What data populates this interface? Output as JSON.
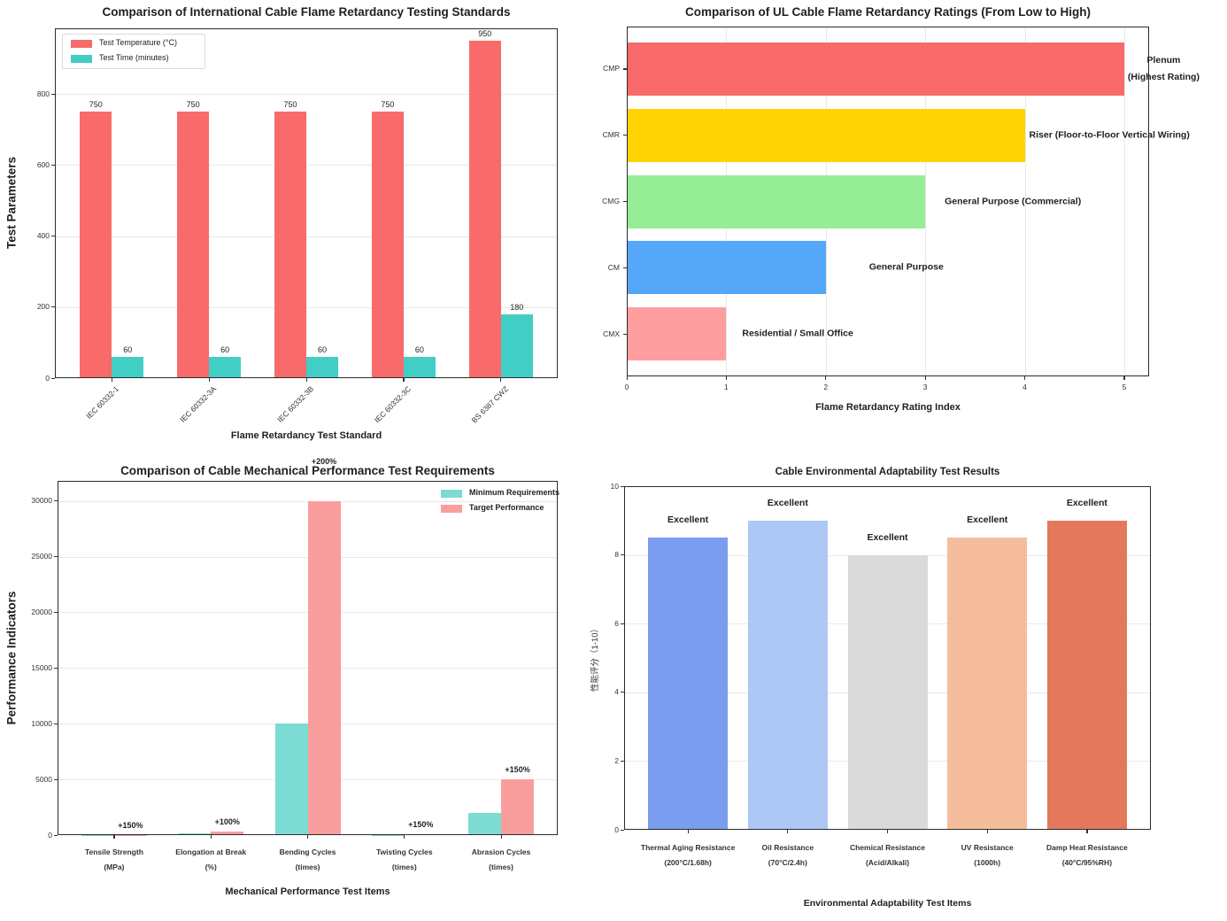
{
  "figure": {
    "background": "#ffffff",
    "spine_color": "#2b2b2b",
    "grid_color": "#e9e9e9",
    "tick_color": "#333333"
  },
  "chart_data": [
    {
      "id": "flame-test-standards",
      "type": "bar",
      "title": "Comparison of International Cable Flame Retardancy Testing Standards",
      "xlabel": "Flame Retardancy Test Standard",
      "ylabel": "Test Parameters",
      "categories": [
        "IEC 60332-1",
        "IEC 60332-3A",
        "IEC 60332-3B",
        "IEC 60332-3C",
        "BS 6387 CWZ"
      ],
      "series": [
        {
          "name": "Test Temperature (°C)",
          "color": "#f96a6a",
          "values": [
            750,
            750,
            750,
            750,
            950
          ]
        },
        {
          "name": "Test Time (minutes)",
          "color": "#41cec5",
          "values": [
            60,
            60,
            60,
            60,
            180
          ]
        }
      ],
      "bar_value_labels": true,
      "ylim": [
        0,
        985
      ],
      "yticks": [
        0,
        200,
        400,
        600,
        800
      ],
      "grid": "horizontal",
      "legend_position": "upper left"
    },
    {
      "id": "ul-flame-ratings",
      "type": "bar-horizontal",
      "title": "Comparison of UL Cable Flame Retardancy Ratings (From Low to High)",
      "xlabel": "Flame Retardancy Rating Index",
      "categories": [
        "CMP",
        "CMR",
        "CMG",
        "CM",
        "CMX"
      ],
      "values": [
        5,
        4,
        3,
        2,
        1
      ],
      "colors": [
        "#f96a6a",
        "#ffd402",
        "#95ee95",
        "#55a8f8",
        "#ff9e9e"
      ],
      "annotations": [
        "Plenum\n(Highest Rating)",
        "Riser (Floor-to-Floor Vertical Wiring)",
        "General Purpose (Commercial)",
        "General Purpose",
        "Residential / Small Office"
      ],
      "xlim": [
        0,
        5.25
      ],
      "xticks": [
        0,
        1,
        2,
        3,
        4,
        5
      ],
      "grid": "vertical"
    },
    {
      "id": "mechanical-performance",
      "type": "bar",
      "title": "Comparison of Cable Mechanical Performance Test Requirements",
      "xlabel": "Mechanical Performance Test Items",
      "ylabel": "Performance Indicators",
      "categories": [
        "Tensile Strength\n(MPa)",
        "Elongation at Break\n(%)",
        "Bending Cycles\n(times)",
        "Twisting Cycles\n(times)",
        "Abrasion Cycles\n(times)"
      ],
      "series": [
        {
          "name": "Minimum Requirements",
          "color": "#7cdbd2",
          "values": [
            10,
            150,
            10000,
            20,
            2000
          ]
        },
        {
          "name": "Target Performance",
          "color": "#fa9d9d",
          "values": [
            25,
            300,
            30000,
            50,
            5000
          ]
        }
      ],
      "annotations": [
        "+150%",
        "+100%",
        "+200%",
        "+150%",
        "+150%"
      ],
      "ylim": [
        0,
        31800
      ],
      "yticks": [
        0,
        5000,
        10000,
        15000,
        20000,
        25000,
        30000
      ],
      "grid": "horizontal",
      "legend_position": "upper right"
    },
    {
      "id": "environmental-adaptability",
      "type": "bar",
      "title": "Cable Environmental Adaptability Test Results",
      "xlabel": "Environmental Adaptability Test Items",
      "ylabel": "性能评分（1-10）",
      "categories": [
        "Thermal Aging Resistance\n(200°C/1.68h)",
        "Oil Resistance\n(70°C/2.4h)",
        "Chemical Resistance\n(Acid/Alkali)",
        "UV Resistance\n(1000h)",
        "Damp Heat Resistance\n(40°C/95%RH)"
      ],
      "values": [
        8.5,
        9,
        8,
        8.5,
        9
      ],
      "colors": [
        "#7a9df0",
        "#adc8f4",
        "#dbdada",
        "#f5bd9b",
        "#e4785d"
      ],
      "bar_labels": [
        "Excellent",
        "Excellent",
        "Excellent",
        "Excellent",
        "Excellent"
      ],
      "ylim": [
        0,
        10
      ],
      "yticks": [
        0,
        2,
        4,
        6,
        8,
        10
      ],
      "grid": "horizontal"
    }
  ]
}
